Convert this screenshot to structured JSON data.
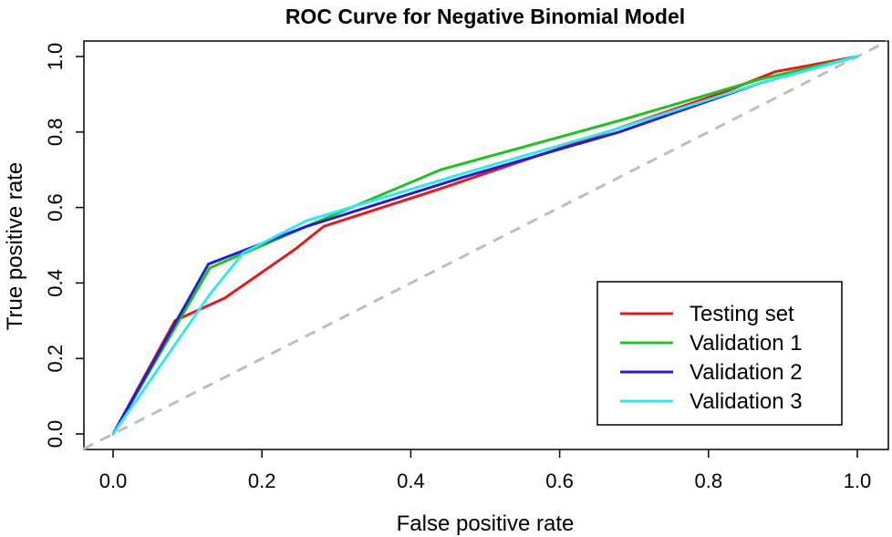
{
  "chart_data": {
    "type": "line",
    "title": "ROC Curve for Negative Binomial Model",
    "xlabel": "False positive rate",
    "ylabel": "True positive rate",
    "xlim": [
      0.0,
      1.0
    ],
    "ylim": [
      0.0,
      1.0
    ],
    "x_ticks": [
      "0.0",
      "0.2",
      "0.4",
      "0.6",
      "0.8",
      "1.0"
    ],
    "y_ticks": [
      "0.0",
      "0.2",
      "0.4",
      "0.6",
      "0.8",
      "1.0"
    ],
    "grid": false,
    "legend_position": "bottom-right",
    "reference_line": {
      "x": [
        0,
        1
      ],
      "y": [
        0,
        1
      ],
      "color": "#bebebe",
      "style": "dashed"
    },
    "series": [
      {
        "name": "Testing set",
        "color": "#e41a1c",
        "x": [
          0,
          0.083,
          0.15,
          0.245,
          0.283,
          0.44,
          0.62,
          0.82,
          0.89,
          1.0
        ],
        "y": [
          0,
          0.3,
          0.36,
          0.49,
          0.55,
          0.65,
          0.77,
          0.905,
          0.96,
          1.0
        ]
      },
      {
        "name": "Validation 1",
        "color": "#22c122",
        "x": [
          0,
          0.13,
          0.26,
          0.44,
          0.68,
          0.87,
          1.0
        ],
        "y": [
          0,
          0.44,
          0.55,
          0.7,
          0.83,
          0.94,
          1.0
        ]
      },
      {
        "name": "Validation 2",
        "color": "#1f1fd6",
        "x": [
          0,
          0.128,
          0.26,
          0.47,
          0.68,
          0.87,
          1.0
        ],
        "y": [
          0,
          0.45,
          0.55,
          0.68,
          0.8,
          0.93,
          1.0
        ]
      },
      {
        "name": "Validation 3",
        "color": "#33e6f0",
        "x": [
          0,
          0.13,
          0.175,
          0.26,
          0.47,
          0.68,
          0.87,
          1.0
        ],
        "y": [
          0,
          0.37,
          0.48,
          0.565,
          0.69,
          0.81,
          0.93,
          1.0
        ]
      }
    ]
  }
}
